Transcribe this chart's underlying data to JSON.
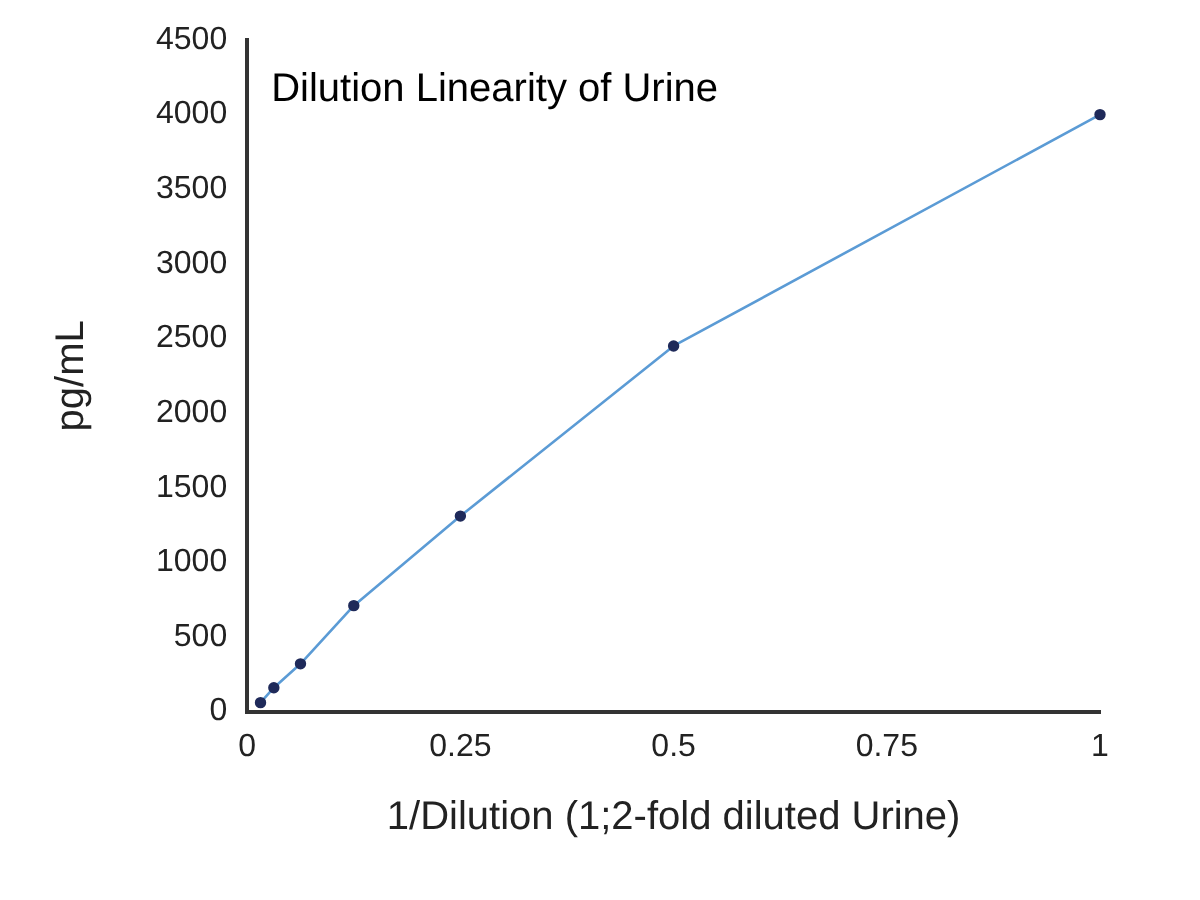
{
  "chart_data": {
    "type": "line",
    "title": "Dilution Linearity of Urine",
    "xlabel": "1/Dilution (1;2-fold diluted Urine)",
    "ylabel": "pg/mL",
    "x": [
      0.015625,
      0.03125,
      0.0625,
      0.125,
      0.25,
      0.5,
      1
    ],
    "series": [
      {
        "color": "#5b9bd5",
        "values": [
          60,
          160,
          320,
          710,
          1310,
          2450,
          4000
        ]
      }
    ],
    "xlim": [
      0,
      1
    ],
    "xticks": [
      0,
      0.25,
      0.5,
      0.75,
      1
    ],
    "ylim": [
      0,
      4500
    ],
    "yticks": [
      0,
      500,
      1000,
      1500,
      2000,
      2500,
      3000,
      3500,
      4000,
      4500
    ],
    "grid": false,
    "legend": false,
    "marker": "circle",
    "line_style": "solid"
  }
}
